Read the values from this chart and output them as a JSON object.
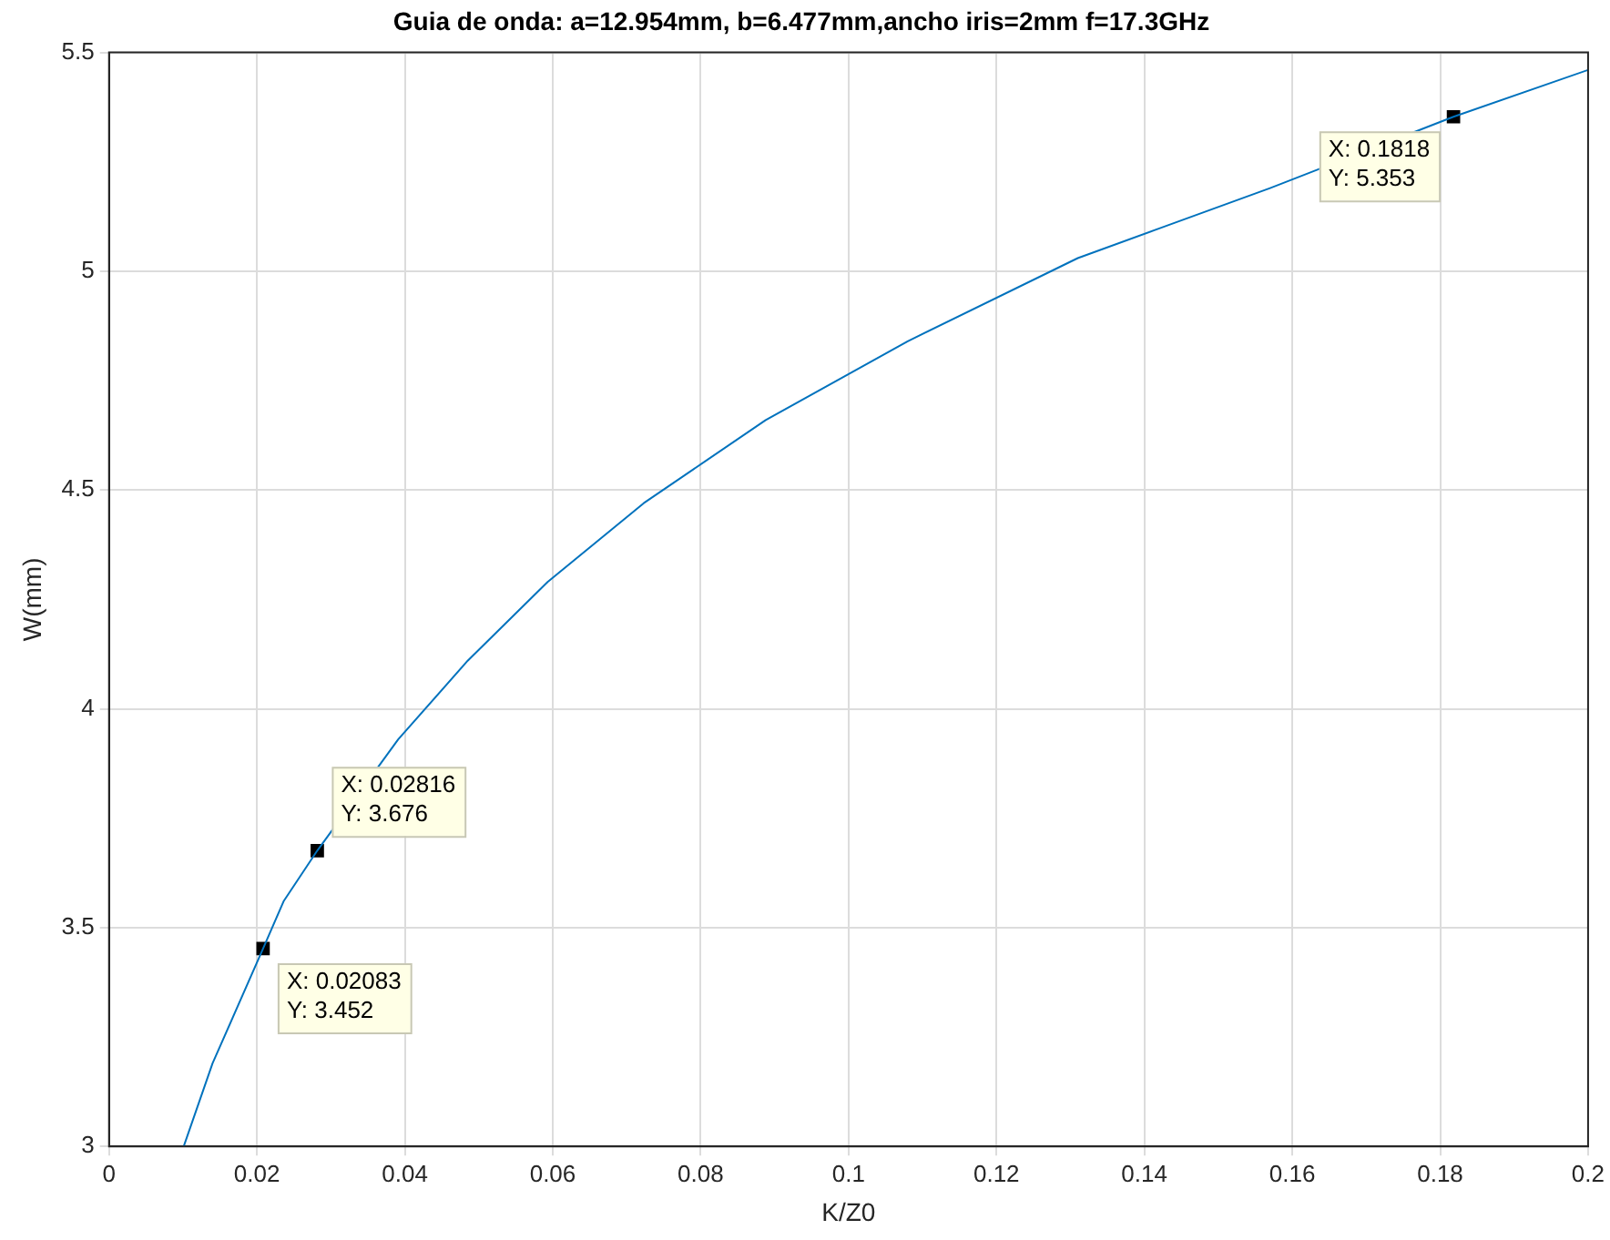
{
  "chart_data": {
    "type": "line",
    "title": "Guia de onda: a=12.954mm, b=6.477mm,ancho iris=2mm f=17.3GHz",
    "xlabel": "K/Z0",
    "ylabel": "W(mm)",
    "xlim": [
      0,
      0.2
    ],
    "xticks": [
      0,
      0.02,
      0.04,
      0.06,
      0.08,
      0.1,
      0.12,
      0.14,
      0.16,
      0.18,
      0.2
    ],
    "ylim": [
      3,
      5.5
    ],
    "yticks": [
      3,
      3.5,
      4,
      4.5,
      5,
      5.5
    ],
    "grid": true,
    "legend": false,
    "marker": "none",
    "line_style": "solid",
    "series": [
      {
        "type": "line",
        "color": "#0072bd",
        "x": [
          0.0101,
          0.014,
          0.02083,
          0.0236,
          0.02816,
          0.0391,
          0.0485,
          0.0593,
          0.0723,
          0.0888,
          0.108,
          0.131,
          0.157,
          0.1818,
          0.2
        ],
        "values": [
          3.0,
          3.19,
          3.452,
          3.56,
          3.676,
          3.93,
          4.11,
          4.29,
          4.47,
          4.66,
          4.84,
          5.03,
          5.19,
          5.353,
          5.46
        ]
      },
      {
        "type": "scatter",
        "color": "#000000",
        "marker": "square",
        "x": [
          0.02083,
          0.02816,
          0.1818
        ],
        "values": [
          3.452,
          3.676,
          5.353
        ]
      }
    ],
    "annotations": [
      {
        "text": "X: 0.02083\nY: 3.452",
        "x": 0.02083,
        "y": 3.452
      },
      {
        "text": "X: 0.02816\nY: 3.676",
        "x": 0.02816,
        "y": 3.676
      },
      {
        "text": "X: 0.1818\nY: 5.353",
        "x": 0.1818,
        "y": 5.353
      }
    ]
  }
}
